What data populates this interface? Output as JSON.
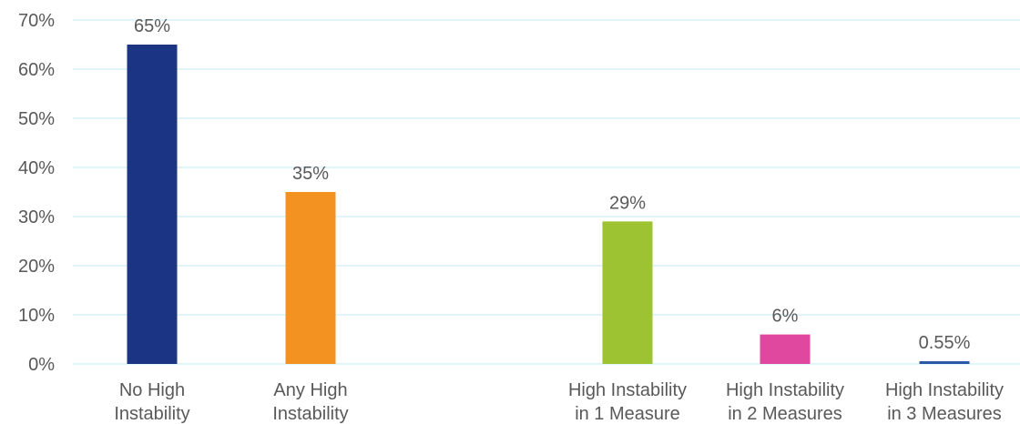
{
  "chart_data": {
    "type": "bar",
    "title": "",
    "xlabel": "",
    "ylabel": "",
    "ylim": [
      0,
      70
    ],
    "y_ticks": [
      0,
      10,
      20,
      30,
      40,
      50,
      60,
      70
    ],
    "y_tick_labels": [
      "0%",
      "10%",
      "20%",
      "30%",
      "40%",
      "50%",
      "60%",
      "70%"
    ],
    "grid": true,
    "categories": [
      [
        "No High",
        "Instability"
      ],
      [
        "Any High",
        "Instability"
      ],
      [
        "High Instability",
        "in 1 Measure"
      ],
      [
        "High Instability",
        "in 2 Measures"
      ],
      [
        "High Instability",
        "in 3 Measures"
      ]
    ],
    "values": [
      65,
      35,
      29,
      6,
      0.55
    ],
    "value_labels": [
      "65%",
      "35%",
      "29%",
      "6%",
      "0.55%"
    ],
    "colors": [
      "#1b3584",
      "#f39221",
      "#9dc232",
      "#e0479e",
      "#2a56a8"
    ]
  }
}
